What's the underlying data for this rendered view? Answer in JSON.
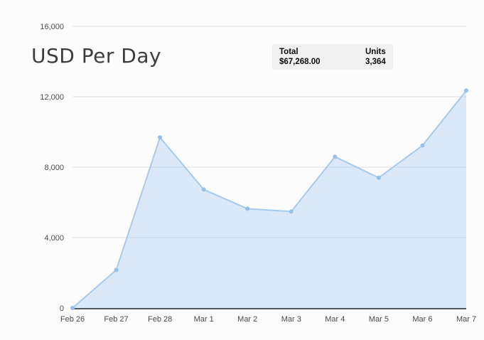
{
  "header": {
    "title": "USD Per Day"
  },
  "summary_box": {
    "total_label": "Total",
    "total_value": "$67,268.00",
    "units_label": "Units",
    "units_value": "3,364"
  },
  "chart_data": {
    "type": "area",
    "title": "USD Per Day",
    "categories": [
      "Feb 26",
      "Feb 27",
      "Feb 28",
      "Mar 1",
      "Mar 2",
      "Mar 3",
      "Mar 4",
      "Mar 5",
      "Mar 6",
      "Mar 7"
    ],
    "values": [
      0,
      2160,
      9690,
      6730,
      5640,
      5480,
      8590,
      7400,
      9230,
      12348
    ],
    "xlabel": "",
    "ylabel": "",
    "ylim": [
      0,
      16000
    ],
    "yticks": [
      0,
      4000,
      8000,
      12000,
      16000
    ],
    "ytick_labels": [
      "0",
      "4,000",
      "8,000",
      "12,000",
      "16,000"
    ],
    "grid": true,
    "legend": false,
    "markers": true,
    "colors": {
      "line": "#a5cbf0",
      "marker": "#96c0ea",
      "fill": "rgba(164,200,238,0.38)",
      "gridline": "#e1e1e1",
      "axis_line": "#58585a",
      "tick_text": "#4a4a4a"
    }
  }
}
